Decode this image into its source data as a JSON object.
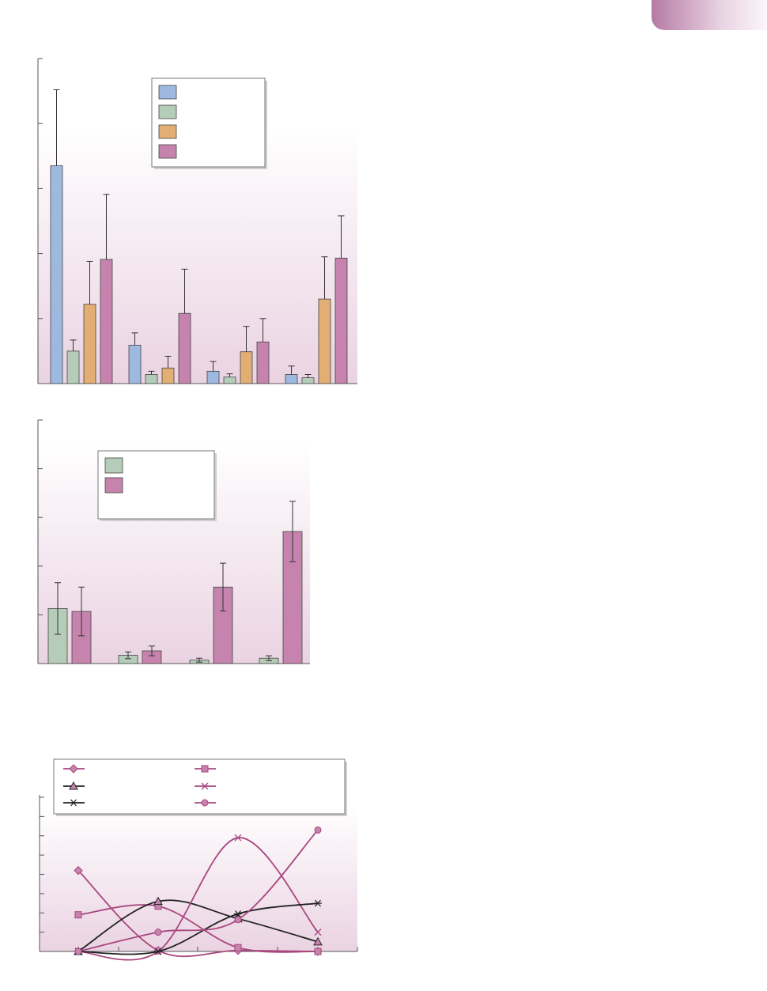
{
  "colors": {
    "series_blue": "#9db9e0",
    "series_green": "#b5cdb8",
    "series_orange": "#e3ae74",
    "series_magenta": "#c683ad",
    "line_dark": "#222222",
    "line_magenta": "#a9467f",
    "bg_bottom": "#ead3e2",
    "tab_accent": "#b57aa4"
  },
  "chart_data": [
    {
      "type": "bar",
      "title": "",
      "xlabel": "",
      "ylabel": "",
      "ylim": [
        0,
        5
      ],
      "yticks": [
        0,
        1,
        2,
        3,
        4,
        5
      ],
      "tick_labels_visible": false,
      "legend": {
        "position": "top-center",
        "labels_visible": false
      },
      "categories": [
        "",
        "",
        "",
        ""
      ],
      "series": [
        {
          "color": "#9db9e0",
          "values": [
            3.35,
            0.59,
            0.19,
            0.14
          ],
          "errors": [
            1.17,
            0.19,
            0.15,
            0.13
          ]
        },
        {
          "color": "#b5cdb8",
          "values": [
            0.5,
            0.14,
            0.1,
            0.09
          ],
          "errors": [
            0.17,
            0.05,
            0.05,
            0.05
          ]
        },
        {
          "color": "#e3ae74",
          "values": [
            1.22,
            0.24,
            0.49,
            1.3
          ],
          "errors": [
            0.66,
            0.18,
            0.39,
            0.65
          ]
        },
        {
          "color": "#c683ad",
          "values": [
            1.91,
            1.08,
            0.64,
            1.93
          ],
          "errors": [
            1.0,
            0.68,
            0.36,
            0.65
          ]
        }
      ]
    },
    {
      "type": "bar",
      "title": "",
      "xlabel": "",
      "ylabel": "",
      "ylim": [
        0,
        5
      ],
      "yticks": [
        0,
        1,
        2,
        3,
        4,
        5
      ],
      "tick_labels_visible": false,
      "legend": {
        "position": "top-center",
        "labels_visible": false
      },
      "categories": [
        "",
        "",
        "",
        ""
      ],
      "series": [
        {
          "color": "#b5cdb8",
          "values": [
            1.13,
            0.17,
            0.07,
            0.11
          ],
          "errors": [
            0.53,
            0.07,
            0.04,
            0.05
          ]
        },
        {
          "color": "#c683ad",
          "values": [
            1.07,
            0.26,
            1.57,
            2.71
          ],
          "errors": [
            0.5,
            0.1,
            0.49,
            0.62
          ]
        }
      ]
    },
    {
      "type": "line",
      "title": "",
      "xlabel": "",
      "ylabel": "",
      "ylim": [
        0,
        8
      ],
      "yticks": [
        0,
        1,
        2,
        3,
        4,
        5,
        6,
        7,
        8
      ],
      "tick_labels_visible": false,
      "smooth": true,
      "legend": {
        "position": "top",
        "labels_visible": false
      },
      "x": [
        1,
        2,
        3,
        4
      ],
      "series": [
        {
          "color": "#a9467f",
          "marker": "diamond",
          "values": [
            4.2,
            0.05,
            0.05,
            0.0
          ]
        },
        {
          "color": "#a9467f",
          "marker": "square",
          "values": [
            1.9,
            2.35,
            0.2,
            0.0
          ]
        },
        {
          "color": "#222222",
          "marker": "triangle",
          "values": [
            0.0,
            2.6,
            1.7,
            0.5
          ]
        },
        {
          "color": "#a9467f",
          "marker": "x",
          "values": [
            0.0,
            0.0,
            5.9,
            1.0
          ]
        },
        {
          "color": "#222222",
          "marker": "asterisk",
          "values": [
            0.0,
            0.0,
            1.95,
            2.5
          ]
        },
        {
          "color": "#a9467f",
          "marker": "circle",
          "values": [
            0.0,
            1.0,
            1.65,
            6.3
          ]
        }
      ]
    }
  ]
}
